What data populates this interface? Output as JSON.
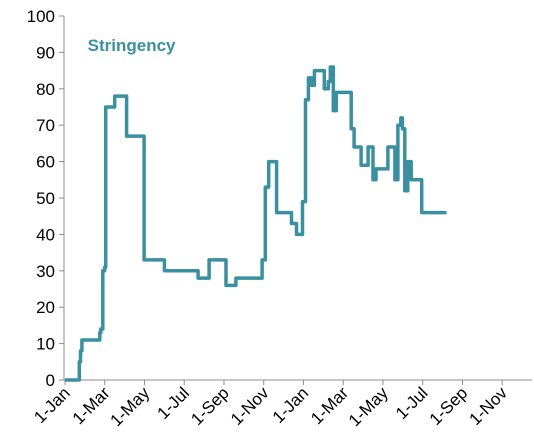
{
  "chart_data": {
    "type": "line",
    "title": "",
    "xlabel": "",
    "ylabel": "",
    "ylim": [
      0,
      100
    ],
    "yticks": [
      0,
      10,
      20,
      30,
      40,
      50,
      60,
      70,
      80,
      90,
      100
    ],
    "xticks": [
      "1-Jan",
      "1-Mar",
      "1-May",
      "1-Jul",
      "1-Sep",
      "1-Nov",
      "1-Jan",
      "1-Mar",
      "1-May",
      "1-Jul",
      "1-Sep",
      "1-Nov"
    ],
    "xlim_months": [
      0,
      23.5
    ],
    "grid": false,
    "legend": "none",
    "series": [
      {
        "name": "Stringency",
        "color": "#3a8fa0",
        "step": true,
        "points": [
          [
            0.0,
            0
          ],
          [
            0.7,
            0
          ],
          [
            0.72,
            5
          ],
          [
            0.78,
            8
          ],
          [
            0.85,
            11
          ],
          [
            1.6,
            11
          ],
          [
            1.75,
            13
          ],
          [
            1.8,
            14
          ],
          [
            1.9,
            30
          ],
          [
            2.0,
            31
          ],
          [
            2.05,
            75
          ],
          [
            2.4,
            75
          ],
          [
            2.5,
            78
          ],
          [
            3.0,
            78
          ],
          [
            3.1,
            67
          ],
          [
            3.9,
            67
          ],
          [
            3.98,
            33
          ],
          [
            4.9,
            33
          ],
          [
            5.0,
            30
          ],
          [
            6.3,
            30
          ],
          [
            6.6,
            30
          ],
          [
            6.7,
            28
          ],
          [
            7.2,
            28
          ],
          [
            7.25,
            33
          ],
          [
            7.5,
            33
          ],
          [
            8.0,
            33
          ],
          [
            8.1,
            26
          ],
          [
            8.5,
            26
          ],
          [
            8.6,
            28
          ],
          [
            9.3,
            28
          ],
          [
            9.9,
            28
          ],
          [
            9.92,
            33
          ],
          [
            10.05,
            33
          ],
          [
            10.08,
            53
          ],
          [
            10.2,
            53
          ],
          [
            10.25,
            60
          ],
          [
            10.6,
            60
          ],
          [
            10.65,
            46
          ],
          [
            11.35,
            46
          ],
          [
            11.4,
            43
          ],
          [
            11.6,
            43
          ],
          [
            11.65,
            40
          ],
          [
            11.9,
            40
          ],
          [
            11.95,
            49
          ],
          [
            12.08,
            49
          ],
          [
            12.1,
            77
          ],
          [
            12.2,
            77
          ],
          [
            12.25,
            83
          ],
          [
            12.35,
            83
          ],
          [
            12.4,
            81
          ],
          [
            12.5,
            81
          ],
          [
            12.55,
            85
          ],
          [
            13.0,
            85
          ],
          [
            13.05,
            80
          ],
          [
            13.2,
            80
          ],
          [
            13.25,
            82
          ],
          [
            13.3,
            82
          ],
          [
            13.35,
            86
          ],
          [
            13.45,
            86
          ],
          [
            13.5,
            74
          ],
          [
            13.6,
            74
          ],
          [
            13.65,
            79
          ],
          [
            14.35,
            79
          ],
          [
            14.4,
            69
          ],
          [
            14.5,
            69
          ],
          [
            14.55,
            64
          ],
          [
            14.85,
            64
          ],
          [
            14.9,
            59
          ],
          [
            15.2,
            59
          ],
          [
            15.25,
            64
          ],
          [
            15.45,
            64
          ],
          [
            15.5,
            55
          ],
          [
            15.6,
            55
          ],
          [
            15.65,
            58
          ],
          [
            16.2,
            58
          ],
          [
            16.25,
            64
          ],
          [
            16.55,
            64
          ],
          [
            16.6,
            55
          ],
          [
            16.7,
            55
          ],
          [
            16.75,
            70
          ],
          [
            16.85,
            70
          ],
          [
            16.9,
            72
          ],
          [
            16.95,
            72
          ],
          [
            16.98,
            69
          ],
          [
            17.05,
            69
          ],
          [
            17.1,
            52
          ],
          [
            17.2,
            52
          ],
          [
            17.25,
            60
          ],
          [
            17.38,
            60
          ],
          [
            17.42,
            55
          ],
          [
            17.9,
            55
          ],
          [
            17.95,
            46
          ],
          [
            19.2,
            46
          ]
        ]
      }
    ],
    "annotations": [
      {
        "text": "Stringency",
        "x_month": 3.35,
        "y": 92
      }
    ]
  }
}
